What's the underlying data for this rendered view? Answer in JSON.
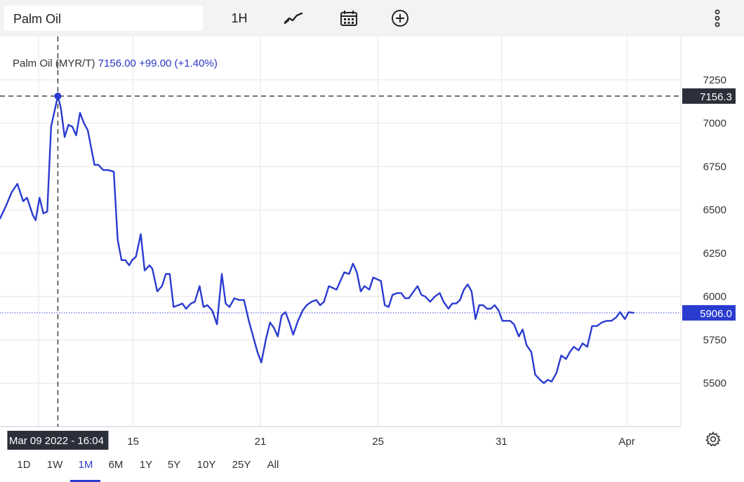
{
  "toolbar": {
    "search_value": "Palm Oil",
    "interval_label": "1H",
    "chart_type_icon": "line-chart-icon",
    "calendar_icon": "calendar-icon",
    "compare_icon": "plus-circle-icon",
    "more_icon": "more-vertical-icon"
  },
  "legend": {
    "instrument": "Palm Oil (MYR/T)",
    "price": "7156.00",
    "change": "+99.00 (+1.40%)"
  },
  "crosshair": {
    "date_label": "Mar 09 2022 - 16:04",
    "price_label": "7156.3",
    "price_value": 7156.3
  },
  "last_price": {
    "label": "5906.0",
    "value": 5906
  },
  "range_buttons": [
    "1D",
    "1W",
    "1M",
    "6M",
    "1Y",
    "5Y",
    "10Y",
    "25Y",
    "All"
  ],
  "active_range": "1M",
  "settings_icon": "gear-icon",
  "chart_data": {
    "type": "line",
    "series": [
      {
        "color": "#2a3bd0",
        "points": [
          [
            3.0,
            6450
          ],
          [
            3.3,
            6520
          ],
          [
            3.6,
            6600
          ],
          [
            3.9,
            6650
          ],
          [
            4.2,
            6550
          ],
          [
            4.4,
            6570
          ],
          [
            4.7,
            6470
          ],
          [
            4.85,
            6440
          ],
          [
            5.05,
            6570
          ],
          [
            5.25,
            6480
          ],
          [
            5.45,
            6490
          ],
          [
            5.65,
            6980
          ],
          [
            6.0,
            7156
          ],
          [
            6.15,
            7090
          ],
          [
            6.35,
            6920
          ],
          [
            6.55,
            6990
          ],
          [
            6.75,
            6980
          ],
          [
            6.95,
            6930
          ],
          [
            7.15,
            7060
          ],
          [
            7.35,
            7000
          ],
          [
            7.55,
            6960
          ],
          [
            7.9,
            6760
          ],
          [
            8.1,
            6760
          ],
          [
            8.35,
            6730
          ],
          [
            8.6,
            6730
          ],
          [
            8.9,
            6720
          ],
          [
            9.1,
            6330
          ],
          [
            9.3,
            6210
          ],
          [
            9.5,
            6210
          ],
          [
            9.7,
            6180
          ],
          [
            9.85,
            6210
          ],
          [
            10.05,
            6230
          ],
          [
            10.3,
            6360
          ],
          [
            10.5,
            6150
          ],
          [
            10.75,
            6180
          ],
          [
            10.9,
            6160
          ],
          [
            11.15,
            6030
          ],
          [
            11.4,
            6060
          ],
          [
            11.6,
            6130
          ],
          [
            11.8,
            6130
          ],
          [
            12.0,
            5940
          ],
          [
            12.25,
            5950
          ],
          [
            12.45,
            5960
          ],
          [
            12.65,
            5930
          ],
          [
            12.9,
            5960
          ],
          [
            13.1,
            5970
          ],
          [
            13.35,
            6060
          ],
          [
            13.55,
            5940
          ],
          [
            13.75,
            5950
          ],
          [
            14.0,
            5920
          ],
          [
            14.25,
            5840
          ],
          [
            14.5,
            6130
          ],
          [
            14.7,
            5960
          ],
          [
            14.9,
            5940
          ],
          [
            15.15,
            5990
          ],
          [
            15.4,
            5980
          ],
          [
            15.65,
            5980
          ],
          [
            15.9,
            5860
          ],
          [
            16.15,
            5760
          ],
          [
            16.35,
            5680
          ],
          [
            16.55,
            5620
          ],
          [
            16.8,
            5760
          ],
          [
            17.0,
            5850
          ],
          [
            17.2,
            5820
          ],
          [
            17.4,
            5770
          ],
          [
            17.6,
            5890
          ],
          [
            17.8,
            5910
          ],
          [
            18.0,
            5850
          ],
          [
            18.2,
            5780
          ],
          [
            18.45,
            5860
          ],
          [
            18.7,
            5920
          ],
          [
            18.9,
            5950
          ],
          [
            19.15,
            5970
          ],
          [
            19.4,
            5980
          ],
          [
            19.6,
            5950
          ],
          [
            19.8,
            5970
          ],
          [
            20.05,
            6060
          ],
          [
            20.25,
            6050
          ],
          [
            20.45,
            6040
          ],
          [
            20.65,
            6090
          ],
          [
            20.85,
            6140
          ],
          [
            21.1,
            6130
          ],
          [
            21.3,
            6190
          ],
          [
            21.5,
            6140
          ],
          [
            21.7,
            6030
          ],
          [
            21.9,
            6060
          ],
          [
            22.15,
            6040
          ],
          [
            22.35,
            6110
          ],
          [
            22.55,
            6100
          ],
          [
            22.75,
            6090
          ],
          [
            22.95,
            5950
          ],
          [
            23.15,
            5940
          ],
          [
            23.35,
            6010
          ],
          [
            23.6,
            6020
          ],
          [
            23.8,
            6020
          ],
          [
            24.0,
            5990
          ],
          [
            24.2,
            5990
          ],
          [
            24.45,
            6030
          ],
          [
            24.65,
            6060
          ],
          [
            24.85,
            6010
          ],
          [
            25.05,
            6000
          ],
          [
            25.3,
            5970
          ],
          [
            25.55,
            6000
          ],
          [
            25.8,
            6020
          ],
          [
            26.0,
            5970
          ],
          [
            26.25,
            5930
          ],
          [
            26.45,
            5960
          ],
          [
            26.65,
            5960
          ],
          [
            26.85,
            5980
          ],
          [
            27.05,
            6040
          ],
          [
            27.25,
            6070
          ],
          [
            27.45,
            6030
          ],
          [
            27.65,
            5870
          ],
          [
            27.85,
            5950
          ],
          [
            28.05,
            5950
          ],
          [
            28.25,
            5930
          ],
          [
            28.45,
            5930
          ],
          [
            28.65,
            5950
          ],
          [
            28.85,
            5920
          ],
          [
            29.05,
            5860
          ],
          [
            29.25,
            5860
          ],
          [
            29.45,
            5860
          ],
          [
            29.65,
            5840
          ],
          [
            29.9,
            5770
          ],
          [
            30.1,
            5810
          ],
          [
            30.3,
            5720
          ],
          [
            30.55,
            5680
          ],
          [
            30.75,
            5550
          ],
          [
            31.0,
            5520
          ],
          [
            31.2,
            5500
          ],
          [
            31.4,
            5520
          ],
          [
            31.6,
            5510
          ],
          [
            31.85,
            5560
          ],
          [
            32.1,
            5660
          ],
          [
            32.35,
            5640
          ],
          [
            32.55,
            5680
          ],
          [
            32.75,
            5710
          ],
          [
            33.0,
            5690
          ],
          [
            33.2,
            5730
          ],
          [
            33.45,
            5710
          ],
          [
            33.7,
            5830
          ],
          [
            33.95,
            5830
          ],
          [
            34.2,
            5850
          ],
          [
            34.45,
            5860
          ],
          [
            34.7,
            5860
          ],
          [
            34.95,
            5880
          ],
          [
            35.15,
            5910
          ],
          [
            35.4,
            5870
          ],
          [
            35.6,
            5910
          ],
          [
            35.85,
            5906
          ]
        ]
      }
    ],
    "x_ticks": [
      {
        "label": "15",
        "x": 9.9
      },
      {
        "label": "21",
        "x": 16.5
      },
      {
        "label": "25",
        "x": 22.6
      },
      {
        "label": "31",
        "x": 29.0
      },
      {
        "label": "Apr",
        "x": 35.5
      }
    ],
    "y_ticks": [
      5500,
      5750,
      6000,
      6250,
      6500,
      6750,
      7000,
      7250
    ],
    "xlim": [
      3.0,
      38.3
    ],
    "ylim": [
      5250,
      7500
    ],
    "grid": true
  }
}
